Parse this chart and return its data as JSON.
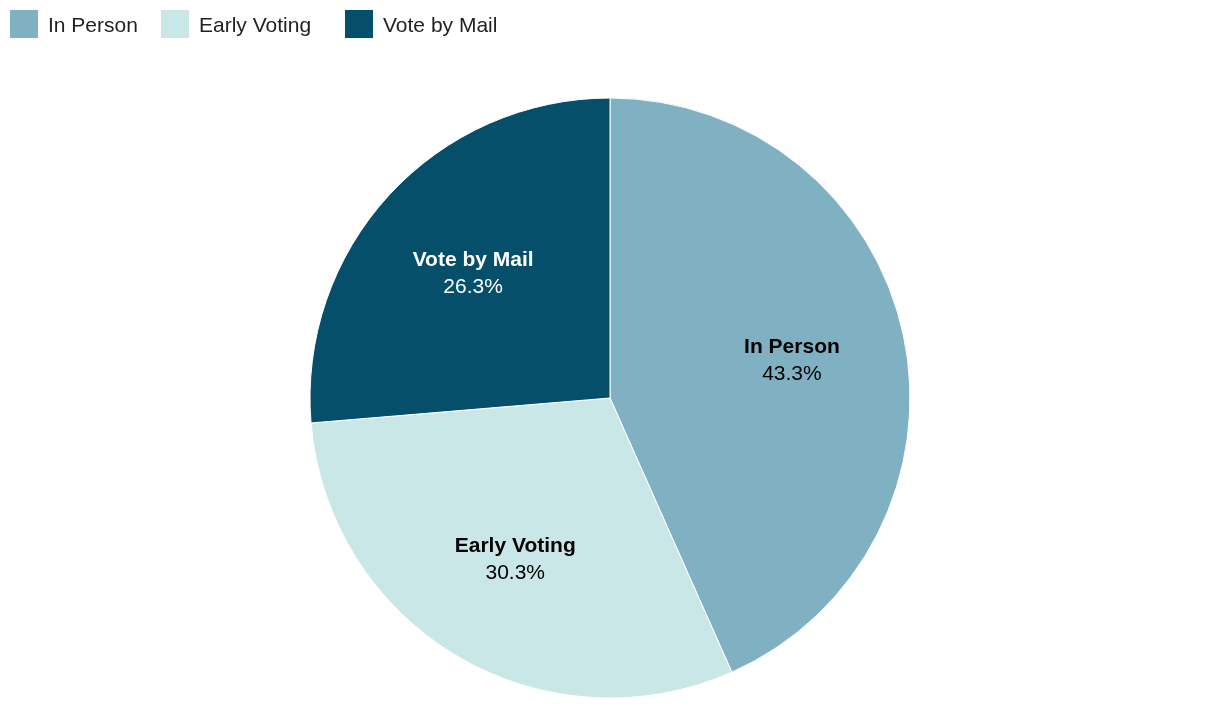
{
  "chart_data": {
    "type": "pie",
    "categories": [
      "In Person",
      "Early Voting",
      "Vote by Mail"
    ],
    "values": [
      43.3,
      30.3,
      26.3
    ],
    "colors": [
      "#7fb1c2",
      "#c8e7e6",
      "#054f6a"
    ],
    "value_labels": [
      "43.3%",
      "30.3%",
      "26.3%"
    ],
    "legend": "top left"
  }
}
